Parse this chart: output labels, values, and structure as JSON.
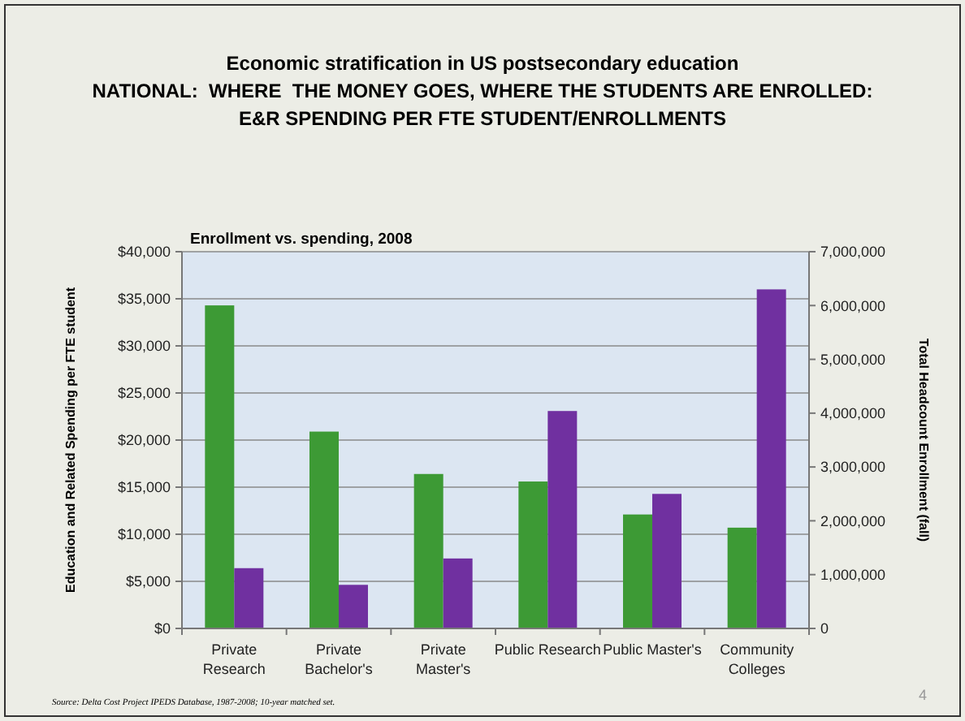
{
  "chart_data": {
    "type": "bar",
    "title": "Economic stratification in US postsecondary education\nNATIONAL:  WHERE  THE MONEY GOES, WHERE THE STUDENTS ARE ENROLLED:\nE&R SPENDING PER FTE STUDENT/ENROLLMENTS",
    "subtitle": "Enrollment vs. spending, 2008",
    "ylabel": "Education and Related Spending per FTE student",
    "y2label": "Total Headcount Enrollment (fall)",
    "categories": [
      "Private\nResearch",
      "Private\nBachelor's",
      "Private\nMaster's",
      "Public Research",
      "Public Master's",
      "Community\nColleges"
    ],
    "series": [
      {
        "color": "#3d9a35",
        "values": [
          34300,
          20900,
          16400,
          15600,
          12100,
          10700
        ]
      },
      {
        "color": "#7030a0",
        "axis": "y2",
        "values": [
          1120000,
          810000,
          1300000,
          4040000,
          2500000,
          6300000
        ]
      }
    ],
    "ylim": [
      0,
      40000
    ],
    "yticks": [
      {
        "value": 0,
        "label": "$0"
      },
      {
        "value": 5000,
        "label": "$5,000"
      },
      {
        "value": 10000,
        "label": "$10,000"
      },
      {
        "value": 15000,
        "label": "$15,000"
      },
      {
        "value": 20000,
        "label": "$20,000"
      },
      {
        "value": 25000,
        "label": "$25,000"
      },
      {
        "value": 30000,
        "label": "$30,000"
      },
      {
        "value": 35000,
        "label": "$35,000"
      },
      {
        "value": 40000,
        "label": "$40,000"
      }
    ],
    "y2lim": [
      0,
      7000000
    ],
    "y2ticks": [
      0,
      {
        "value": 1000000,
        "label": "1,000,000"
      },
      {
        "value": 2000000,
        "label": "2,000,000"
      },
      {
        "value": 3000000,
        "label": "3,000,000"
      },
      {
        "value": 4000000,
        "label": "4,000,000"
      },
      {
        "value": 5000000,
        "label": "5,000,000"
      },
      {
        "value": 6000000,
        "label": "6,000,000"
      },
      {
        "value": 7000000,
        "label": "7,000,000"
      }
    ],
    "grid": "y",
    "annotations": [
      "Source: Delta Cost Project IPEDS Database, 1987-2008; 10-year matched set.",
      "4"
    ]
  }
}
